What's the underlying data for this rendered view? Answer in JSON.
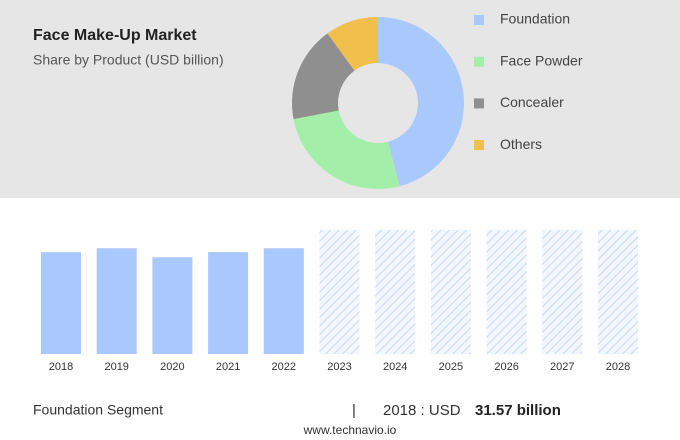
{
  "chart_data": [
    {
      "type": "pie",
      "title": "Face Make-Up Market",
      "subtitle": "Share by Product (USD billion)",
      "categories": [
        "Foundation",
        "Face Powder",
        "Concealer",
        "Others"
      ],
      "values": [
        46,
        26,
        18,
        10
      ],
      "colors": [
        "#a9c8fb",
        "#a3efaa",
        "#8f8f8f",
        "#f0bf4c"
      ],
      "donut": true
    },
    {
      "type": "bar",
      "categories": [
        "2018",
        "2019",
        "2020",
        "2021",
        "2022",
        "2023",
        "2024",
        "2025",
        "2026",
        "2027",
        "2028"
      ],
      "values": [
        31.57,
        32.8,
        30.0,
        31.6,
        32.8,
        null,
        null,
        null,
        null,
        null,
        null
      ],
      "color": "#a9c8fb",
      "ylim": [
        0,
        40
      ]
    }
  ],
  "footer": {
    "segment": "Foundation Segment",
    "separator": "|",
    "year_label": "2018 : USD",
    "value_label": "31.57 billion",
    "source": "www.technavio.io"
  }
}
